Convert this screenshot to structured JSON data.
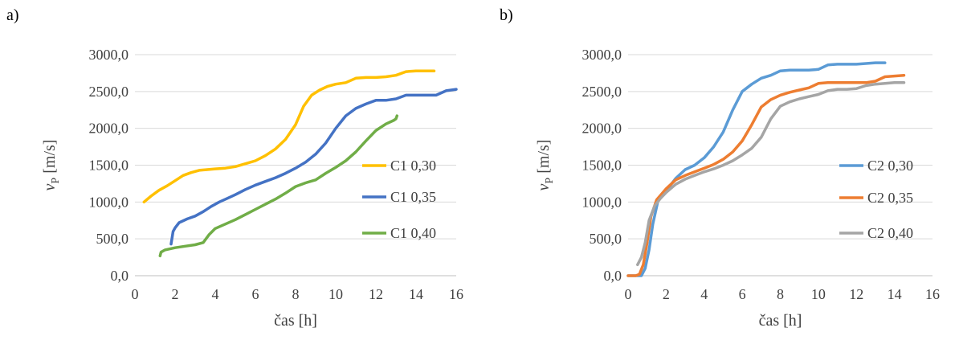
{
  "chart_data": [
    {
      "panel": "a)",
      "type": "line",
      "xlabel": "čas [h]",
      "ylabel_main": "v",
      "ylabel_sub": "P",
      "ylabel_unit": " [m/s]",
      "xlim": [
        0,
        16
      ],
      "ylim": [
        0,
        3000
      ],
      "x_ticks": [
        "0",
        "2",
        "4",
        "6",
        "8",
        "10",
        "12",
        "14",
        "16"
      ],
      "y_ticks": [
        "0,0",
        "500,0",
        "1000,0",
        "1500,0",
        "2000,0",
        "2500,0",
        "3000,0"
      ],
      "grid": true,
      "legend_position": "right",
      "series": [
        {
          "name": "C1 0,30",
          "color": "#FFC000",
          "x": [
            0.45,
            0.8,
            1.2,
            1.6,
            2.0,
            2.4,
            2.8,
            3.2,
            3.6,
            4.0,
            4.5,
            5.0,
            5.5,
            6.0,
            6.5,
            7.0,
            7.5,
            8.0,
            8.4,
            8.8,
            9.2,
            9.6,
            10.0,
            10.5,
            11.0,
            11.5,
            12.0,
            12.5,
            13.0,
            13.5,
            14.0,
            14.5,
            14.9
          ],
          "y": [
            1000,
            1080,
            1160,
            1220,
            1290,
            1360,
            1400,
            1430,
            1440,
            1450,
            1460,
            1480,
            1520,
            1560,
            1630,
            1720,
            1850,
            2050,
            2300,
            2450,
            2520,
            2570,
            2600,
            2620,
            2680,
            2690,
            2690,
            2700,
            2720,
            2770,
            2780,
            2780,
            2780
          ]
        },
        {
          "name": "C1 0,35",
          "color": "#4472C4",
          "x": [
            1.8,
            1.9,
            2.0,
            2.2,
            2.6,
            3.0,
            3.4,
            3.8,
            4.2,
            4.6,
            5.0,
            5.5,
            6.0,
            6.5,
            7.0,
            7.5,
            8.0,
            8.5,
            9.0,
            9.5,
            10.0,
            10.5,
            11.0,
            11.5,
            12.0,
            12.5,
            13.0,
            13.5,
            14.0,
            14.5,
            15.0,
            15.5,
            16.0
          ],
          "y": [
            430,
            600,
            650,
            720,
            770,
            810,
            870,
            940,
            1000,
            1050,
            1100,
            1170,
            1230,
            1280,
            1330,
            1390,
            1460,
            1540,
            1650,
            1800,
            2000,
            2170,
            2270,
            2330,
            2380,
            2380,
            2400,
            2450,
            2450,
            2450,
            2450,
            2510,
            2530
          ]
        },
        {
          "name": "C1 0,40",
          "color": "#70AD47",
          "x": [
            1.25,
            1.3,
            1.5,
            2.0,
            2.5,
            3.0,
            3.4,
            3.7,
            4.0,
            4.5,
            5.0,
            5.5,
            6.0,
            6.5,
            7.0,
            7.5,
            8.0,
            8.5,
            9.0,
            9.5,
            10.0,
            10.5,
            11.0,
            11.5,
            12.0,
            12.5,
            12.9,
            13.0,
            13.05
          ],
          "y": [
            270,
            320,
            350,
            380,
            400,
            420,
            450,
            560,
            640,
            700,
            760,
            830,
            900,
            970,
            1040,
            1120,
            1210,
            1260,
            1300,
            1390,
            1470,
            1560,
            1680,
            1830,
            1970,
            2060,
            2110,
            2130,
            2170
          ]
        }
      ]
    },
    {
      "panel": "b)",
      "type": "line",
      "xlabel": "čas [h]",
      "ylabel_main": "v",
      "ylabel_sub": "P",
      "ylabel_unit": " [m/s]",
      "xlim": [
        0,
        16
      ],
      "ylim": [
        0,
        3000
      ],
      "x_ticks": [
        "0",
        "2",
        "4",
        "6",
        "8",
        "10",
        "12",
        "14",
        "16"
      ],
      "y_ticks": [
        "0,0",
        "500,0",
        "1000,0",
        "1500,0",
        "2000,0",
        "2500,0",
        "3000,0"
      ],
      "grid": true,
      "legend_position": "right",
      "series": [
        {
          "name": "C2 0,30",
          "color": "#5B9BD5",
          "x": [
            0.0,
            0.5,
            0.7,
            0.9,
            1.1,
            1.3,
            1.6,
            2.0,
            2.5,
            3.0,
            3.5,
            4.0,
            4.5,
            5.0,
            5.5,
            6.0,
            6.5,
            7.0,
            7.5,
            8.0,
            8.5,
            9.0,
            9.5,
            10.0,
            10.5,
            11.0,
            11.5,
            12.0,
            12.5,
            13.0,
            13.5
          ],
          "y": [
            0,
            0,
            0,
            100,
            350,
            700,
            1050,
            1150,
            1320,
            1440,
            1500,
            1600,
            1750,
            1950,
            2250,
            2500,
            2600,
            2680,
            2720,
            2780,
            2790,
            2790,
            2790,
            2800,
            2860,
            2870,
            2870,
            2870,
            2880,
            2890,
            2890
          ]
        },
        {
          "name": "C2 0,35",
          "color": "#ED7D31",
          "x": [
            0.0,
            0.4,
            0.6,
            0.8,
            1.0,
            1.2,
            1.5,
            2.0,
            2.5,
            3.0,
            3.5,
            4.0,
            4.5,
            5.0,
            5.5,
            6.0,
            6.5,
            7.0,
            7.5,
            8.0,
            8.5,
            9.0,
            9.5,
            10.0,
            10.5,
            11.0,
            11.5,
            12.0,
            12.5,
            13.0,
            13.5,
            14.0,
            14.5
          ],
          "y": [
            0,
            0,
            20,
            150,
            450,
            800,
            1030,
            1180,
            1300,
            1360,
            1410,
            1460,
            1510,
            1580,
            1680,
            1830,
            2050,
            2290,
            2390,
            2450,
            2490,
            2520,
            2550,
            2610,
            2620,
            2620,
            2620,
            2620,
            2620,
            2640,
            2700,
            2710,
            2720
          ]
        },
        {
          "name": "C2 0,40",
          "color": "#A5A5A5",
          "x": [
            0.5,
            0.7,
            0.9,
            1.1,
            1.4,
            1.7,
            2.0,
            2.5,
            3.0,
            3.5,
            4.0,
            4.5,
            5.0,
            5.5,
            6.0,
            6.5,
            7.0,
            7.5,
            8.0,
            8.5,
            9.0,
            9.5,
            10.0,
            10.5,
            11.0,
            11.5,
            12.0,
            12.5,
            13.0,
            13.5,
            14.0,
            14.5
          ],
          "y": [
            150,
            250,
            450,
            750,
            950,
            1050,
            1130,
            1240,
            1310,
            1360,
            1410,
            1450,
            1500,
            1560,
            1640,
            1730,
            1880,
            2130,
            2300,
            2360,
            2400,
            2430,
            2460,
            2510,
            2530,
            2530,
            2540,
            2580,
            2600,
            2610,
            2620,
            2620
          ]
        }
      ]
    }
  ]
}
